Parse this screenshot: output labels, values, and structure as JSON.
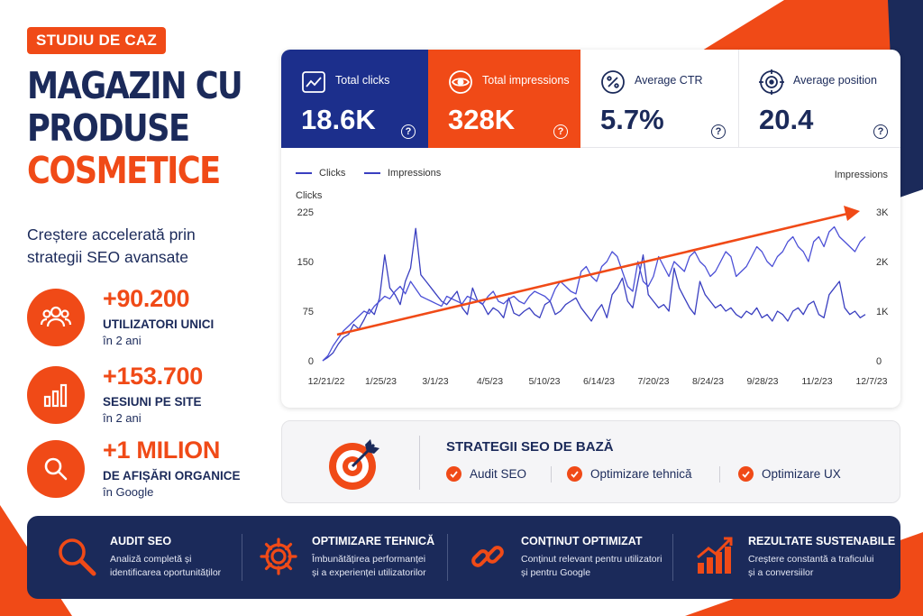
{
  "badge": "STUDIU DE CAZ",
  "title": {
    "line1": "MAGAZIN CU",
    "line2": "PRODUSE",
    "line3": "COSMETICE"
  },
  "subtitle": {
    "line1": "Creștere accelerată prin",
    "line2": "strategii SEO avansate"
  },
  "stats": [
    {
      "icon": "users-icon",
      "value": "+90.200",
      "label": "UTILIZATORI UNICI",
      "sub": "în 2 ani"
    },
    {
      "icon": "bar-chart-icon",
      "value": "+153.700",
      "label": "SESIUNI PE SITE",
      "sub": "în 2 ani"
    },
    {
      "icon": "search-icon",
      "value": "+1 MILION",
      "label": "DE AFIȘĂRI ORGANICE",
      "sub": "în Google"
    }
  ],
  "kpis": [
    {
      "icon": "trend-icon",
      "label": "Total clicks",
      "value": "18.6K",
      "help": "?"
    },
    {
      "icon": "eye-icon",
      "label": "Total impressions",
      "value": "328K",
      "help": "?"
    },
    {
      "icon": "percent-icon",
      "label": "Average CTR",
      "value": "5.7%",
      "help": "?"
    },
    {
      "icon": "target-icon",
      "label": "Average position",
      "value": "20.4",
      "help": "?"
    }
  ],
  "chart_data": {
    "type": "line",
    "legend": [
      "Clicks",
      "Impressions"
    ],
    "ylabel_left": "Clicks",
    "ylabel_right": "Impressions",
    "yticks_left": [
      "225",
      "150",
      "75",
      "0"
    ],
    "yticks_right": [
      "3K",
      "2K",
      "1K",
      "0"
    ],
    "ylim_left": [
      0,
      225
    ],
    "ylim_right": [
      0,
      3000
    ],
    "xticks": [
      "12/21/22",
      "1/25/23",
      "3/1/23",
      "4/5/23",
      "5/10/23",
      "6/14/23",
      "7/20/23",
      "8/24/23",
      "9/28/23",
      "11/2/23",
      "12/7/23"
    ],
    "series": [
      {
        "name": "Clicks",
        "axis": "left",
        "color": "#3a3fc0",
        "values": [
          0,
          5,
          12,
          25,
          35,
          40,
          55,
          48,
          62,
          78,
          70,
          95,
          160,
          110,
          100,
          85,
          120,
          140,
          200,
          130,
          120,
          110,
          100,
          90,
          85,
          95,
          105,
          80,
          70,
          110,
          90,
          85,
          70,
          80,
          75,
          65,
          95,
          72,
          68,
          75,
          80,
          70,
          65,
          85,
          90,
          70,
          75,
          85,
          90,
          95,
          80,
          70,
          60,
          75,
          85,
          65,
          100,
          110,
          125,
          90,
          80,
          120,
          160,
          100,
          90,
          80,
          85,
          75,
          140,
          110,
          95,
          80,
          70,
          120,
          100,
          90,
          80,
          85,
          75,
          80,
          70,
          65,
          75,
          70,
          80,
          65,
          70,
          60,
          75,
          70,
          60,
          75,
          80,
          70,
          85,
          90,
          70,
          65,
          100,
          110,
          120,
          80,
          70,
          75,
          65,
          70
        ]
      },
      {
        "name": "Impressions",
        "axis": "right",
        "color": "#4b4fd6",
        "values": [
          0,
          100,
          300,
          450,
          600,
          700,
          800,
          900,
          1000,
          950,
          1100,
          1200,
          1300,
          1250,
          1400,
          1500,
          1350,
          1600,
          1450,
          1300,
          1250,
          1200,
          1150,
          1100,
          1300,
          1250,
          1200,
          1150,
          1300,
          1250,
          1200,
          1150,
          1300,
          1400,
          1200,
          1150,
          1250,
          1300,
          1200,
          1150,
          1300,
          1400,
          1350,
          1300,
          1200,
          1450,
          1600,
          1500,
          1400,
          1350,
          1800,
          1900,
          1700,
          1600,
          1900,
          2000,
          2200,
          2100,
          1800,
          1500,
          1400,
          2000,
          1600,
          1500,
          1700,
          2100,
          1900,
          1700,
          2000,
          1900,
          1800,
          2100,
          2200,
          2000,
          1900,
          1700,
          1800,
          2000,
          2200,
          2100,
          1700,
          1800,
          1900,
          2100,
          2300,
          2200,
          2000,
          1900,
          2100,
          2200,
          2400,
          2500,
          2300,
          2200,
          2000,
          2400,
          2500,
          2300,
          2600,
          2700,
          2500,
          2400,
          2300,
          2200,
          2400,
          2500
        ]
      }
    ]
  },
  "strategy": {
    "title": "STRATEGII SEO DE BAZĂ",
    "items": [
      "Audit SEO",
      "Optimizare tehnică",
      "Optimizare UX"
    ]
  },
  "features": [
    {
      "icon": "magnifier-icon",
      "title": "AUDIT SEO",
      "line1": "Analiză completă și",
      "line2": "identificarea oportunităților"
    },
    {
      "icon": "gear-icon",
      "title": "OPTIMIZARE TEHNICĂ",
      "line1": "Îmbunătățirea performanței",
      "line2": "și a experienței utilizatorilor"
    },
    {
      "icon": "link-icon",
      "title": "CONȚINUT OPTIMIZAT",
      "line1": "Conținut relevant pentru utilizatori",
      "line2": "și pentru Google"
    },
    {
      "icon": "growth-chart-icon",
      "title": "REZULTATE SUSTENABILE",
      "line1": "Creștere constantă a traficului",
      "line2": "și a conversiilor"
    }
  ]
}
